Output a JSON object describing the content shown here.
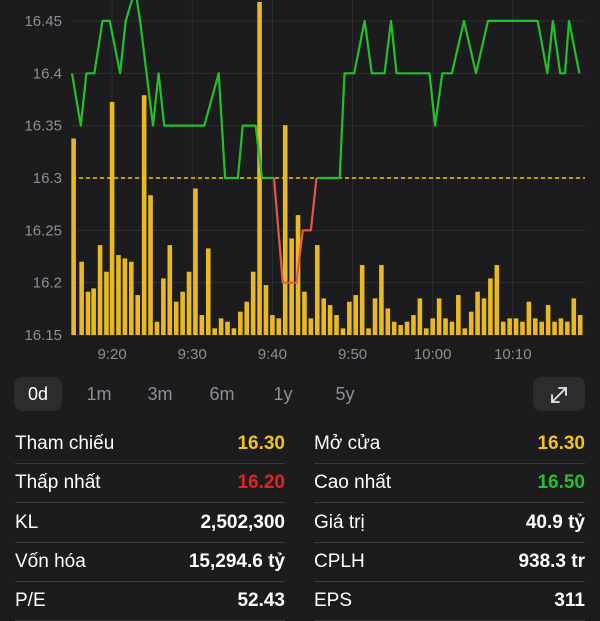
{
  "chart_data": {
    "type": "line",
    "ylim": [
      16.15,
      16.47
    ],
    "y_ticks": [
      "16.45",
      "16.4",
      "16.35",
      "16.3",
      "16.25",
      "16.2",
      "16.15"
    ],
    "y_tick_values": [
      16.45,
      16.4,
      16.35,
      16.3,
      16.25,
      16.2,
      16.15
    ],
    "x_ticks": [
      "9:20",
      "9:30",
      "9:40",
      "9:50",
      "10:00",
      "10:10"
    ],
    "x_tick_minutes": [
      20,
      30,
      40,
      50,
      60,
      70
    ],
    "xlim": [
      15,
      79
    ],
    "reference_price": 16.3,
    "colors": {
      "up": "#22c02a",
      "down": "#e8554a",
      "ref": "#f0c419",
      "volume": "#e8b923"
    },
    "price": {
      "t": [
        15.0,
        16.1,
        16.8,
        17.8,
        18.8,
        19.7,
        21.0,
        21.7,
        22.9,
        23.5,
        25.1,
        25.8,
        26.5,
        27.2,
        28.0,
        28.3,
        30.0,
        31.5,
        33.3,
        34.1,
        34.4,
        35.7,
        36.3,
        37.0,
        37.9,
        38.7,
        40.2,
        41.3,
        41.7,
        42.5,
        43.0,
        43.8,
        44.8,
        45.5,
        45.9,
        46.5,
        47.7,
        48.4,
        49.0,
        50.2,
        51.5,
        52.4,
        53.1,
        54.0,
        54.8,
        55.5,
        56.1,
        56.9,
        58.0,
        58.7,
        59.6,
        60.3,
        61.2,
        62.4,
        63.9,
        65.4,
        66.9,
        68.5,
        69.7,
        70.2,
        71.9,
        73.1,
        74.3,
        75.0,
        75.9,
        76.5,
        77.0,
        78.3
      ],
      "v": [
        16.4,
        16.35,
        16.4,
        16.4,
        16.45,
        16.45,
        16.4,
        16.45,
        16.48,
        16.45,
        16.35,
        16.4,
        16.35,
        16.35,
        16.35,
        16.35,
        16.35,
        16.35,
        16.4,
        16.3,
        16.3,
        16.3,
        16.35,
        16.35,
        16.35,
        16.3,
        16.3,
        16.2,
        16.2,
        16.2,
        16.2,
        16.25,
        16.25,
        16.3,
        16.3,
        16.3,
        16.3,
        16.3,
        16.4,
        16.4,
        16.45,
        16.4,
        16.4,
        16.4,
        16.45,
        16.4,
        16.4,
        16.4,
        16.4,
        16.4,
        16.4,
        16.35,
        16.4,
        16.4,
        16.45,
        16.4,
        16.45,
        16.45,
        16.45,
        16.45,
        16.45,
        16.45,
        16.4,
        16.45,
        16.4,
        16.4,
        16.45,
        16.4
      ]
    },
    "volume": {
      "t": [
        15.2,
        16.2,
        17.0,
        17.7,
        18.5,
        19.3,
        20.0,
        20.8,
        21.6,
        22.4,
        23.2,
        24.0,
        24.8,
        25.6,
        26.4,
        27.2,
        28.0,
        28.8,
        29.6,
        30.4,
        31.2,
        32.0,
        32.8,
        33.6,
        34.4,
        35.2,
        36.0,
        36.8,
        37.6,
        38.4,
        39.2,
        40.0,
        40.8,
        41.6,
        42.4,
        43.2,
        44.0,
        44.8,
        45.6,
        46.4,
        47.2,
        48.0,
        48.8,
        49.6,
        50.4,
        51.2,
        52.0,
        52.8,
        53.6,
        54.4,
        55.2,
        56.0,
        56.8,
        57.6,
        58.4,
        59.2,
        60.0,
        60.8,
        61.6,
        62.4,
        63.2,
        64.0,
        64.8,
        65.6,
        66.4,
        67.2,
        68.0,
        68.8,
        69.6,
        70.4,
        71.2,
        72.0,
        72.8,
        73.6,
        74.4,
        75.2,
        76.0,
        76.8,
        77.6,
        78.4
      ],
      "h": [
        0.59,
        0.22,
        0.13,
        0.14,
        0.27,
        0.19,
        0.7,
        0.24,
        0.23,
        0.22,
        0.12,
        0.72,
        0.42,
        0.04,
        0.17,
        0.27,
        0.1,
        0.13,
        0.19,
        0.44,
        0.06,
        0.26,
        0.02,
        0.05,
        0.04,
        0.02,
        0.07,
        0.1,
        0.19,
        1.0,
        0.15,
        0.06,
        0.05,
        0.63,
        0.29,
        0.36,
        0.13,
        0.05,
        0.27,
        0.11,
        0.09,
        0.06,
        0.02,
        0.1,
        0.12,
        0.21,
        0.02,
        0.11,
        0.21,
        0.08,
        0.04,
        0.03,
        0.04,
        0.06,
        0.11,
        0.02,
        0.05,
        0.11,
        0.05,
        0.04,
        0.12,
        0.02,
        0.07,
        0.13,
        0.11,
        0.17,
        0.21,
        0.04,
        0.05,
        0.05,
        0.04,
        0.1,
        0.05,
        0.04,
        0.09,
        0.04,
        0.05,
        0.04,
        0.11,
        0.06
      ]
    }
  },
  "range_tabs": [
    {
      "label": "0d",
      "active": true
    },
    {
      "label": "1m",
      "active": false
    },
    {
      "label": "3m",
      "active": false
    },
    {
      "label": "6m",
      "active": false
    },
    {
      "label": "1y",
      "active": false
    },
    {
      "label": "5y",
      "active": false
    }
  ],
  "expand_icon": "expand-arrows-icon",
  "stats": {
    "left": [
      {
        "label": "Tham chiếu",
        "value": "16.30",
        "color": "#f0c419"
      },
      {
        "label": "Thấp nhất",
        "value": "16.20",
        "color": "#e0241f"
      },
      {
        "label": "KL",
        "value": "2,502,300",
        "color": "#ffffff"
      },
      {
        "label": "Vốn hóa",
        "value": "15,294.6 tỷ",
        "color": "#ffffff"
      },
      {
        "label": "P/E",
        "value": "52.43",
        "color": "#ffffff"
      }
    ],
    "right": [
      {
        "label": "Mở cửa",
        "value": "16.30",
        "color": "#f0c419"
      },
      {
        "label": "Cao nhất",
        "value": "16.50",
        "color": "#22c02a"
      },
      {
        "label": "Giá trị",
        "value": "40.9 tỷ",
        "color": "#ffffff"
      },
      {
        "label": "CPLH",
        "value": "938.3 tr",
        "color": "#ffffff"
      },
      {
        "label": "EPS",
        "value": "311",
        "color": "#ffffff"
      }
    ]
  }
}
